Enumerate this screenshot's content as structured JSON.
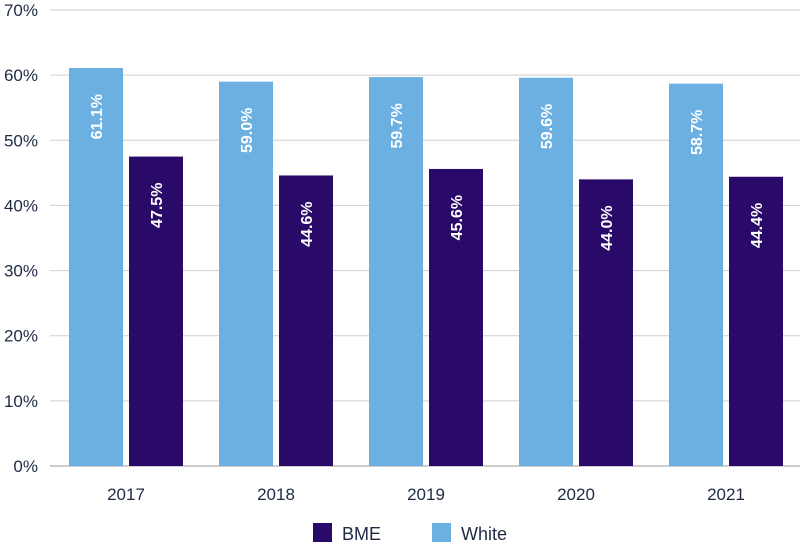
{
  "chart_data": {
    "type": "bar",
    "title": "",
    "xlabel": "",
    "ylabel": "",
    "categories": [
      "2017",
      "2018",
      "2019",
      "2020",
      "2021"
    ],
    "series": [
      {
        "name": "White",
        "values": [
          61.1,
          59.0,
          59.7,
          59.6,
          58.7
        ],
        "labels": [
          "61.1%",
          "59.0%",
          "59.7%",
          "59.6%",
          "58.7%"
        ],
        "color": "#6cb0e2"
      },
      {
        "name": "BME",
        "values": [
          47.5,
          44.6,
          45.6,
          44.0,
          44.4
        ],
        "labels": [
          "47.5%",
          "44.6%",
          "45.6%",
          "44.0%",
          "44.4%"
        ],
        "color": "#2a0a69"
      }
    ],
    "ylim": [
      0,
      70
    ],
    "yticks": [
      0,
      10,
      20,
      30,
      40,
      50,
      60,
      70
    ],
    "ytick_labels": [
      "0%",
      "10%",
      "20%",
      "30%",
      "40%",
      "50%",
      "60%",
      "70%"
    ],
    "grid": true,
    "legend": {
      "position": "bottom",
      "items": [
        {
          "label": "BME",
          "color": "#2a0a69"
        },
        {
          "label": "White",
          "color": "#6cb0e2"
        }
      ]
    }
  }
}
